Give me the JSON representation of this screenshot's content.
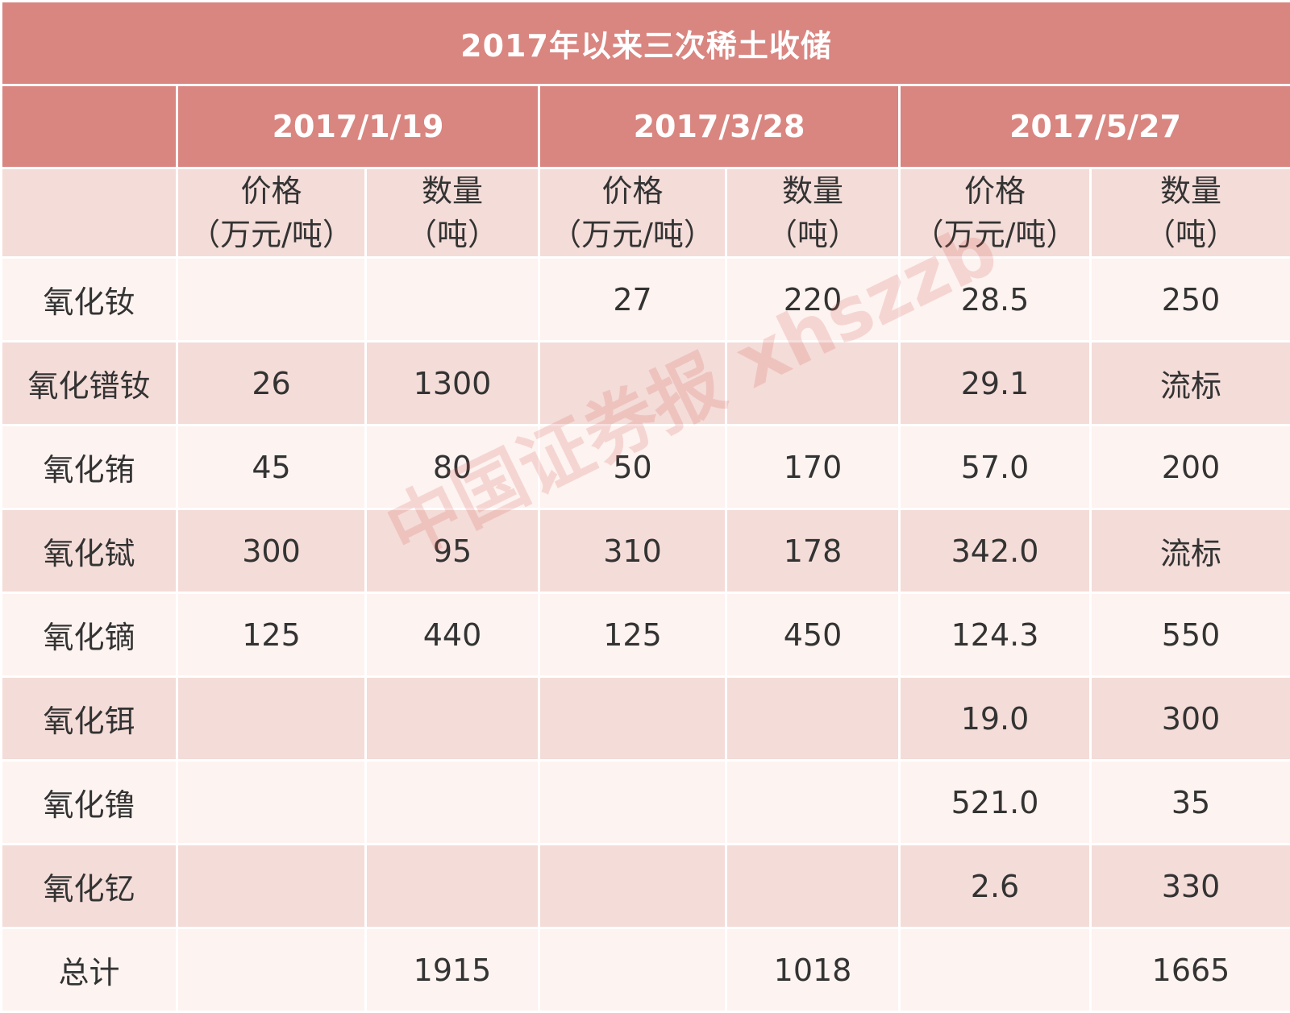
{
  "title": "2017年以来三次稀土收储",
  "dates": [
    "2017/1/19",
    "2017/3/28",
    "2017/5/27"
  ],
  "sub_headers": {
    "price_line1": "价格",
    "price_line2": "（万元/吨）",
    "qty_line1": "数量",
    "qty_line2": "（吨）"
  },
  "rows": [
    {
      "name": "氧化钕",
      "cells": [
        "",
        "",
        "27",
        "220",
        "28.5",
        "250"
      ]
    },
    {
      "name": "氧化镨钕",
      "cells": [
        "26",
        "1300",
        "",
        "",
        "29.1",
        "流标"
      ]
    },
    {
      "name": "氧化铕",
      "cells": [
        "45",
        "80",
        "50",
        "170",
        "57.0",
        "200"
      ]
    },
    {
      "name": "氧化铽",
      "cells": [
        "300",
        "95",
        "310",
        "178",
        "342.0",
        "流标"
      ]
    },
    {
      "name": "氧化镝",
      "cells": [
        "125",
        "440",
        "125",
        "450",
        "124.3",
        "550"
      ]
    },
    {
      "name": "氧化铒",
      "cells": [
        "",
        "",
        "",
        "",
        "19.0",
        "300"
      ]
    },
    {
      "name": "氧化镥",
      "cells": [
        "",
        "",
        "",
        "",
        "521.0",
        "35"
      ]
    },
    {
      "name": "氧化钇",
      "cells": [
        "",
        "",
        "",
        "",
        "2.6",
        "330"
      ]
    },
    {
      "name": "总计",
      "cells": [
        "",
        "1915",
        "",
        "1018",
        "",
        "1665"
      ]
    }
  ],
  "watermark": "中国证券报 xhszzb",
  "colors": {
    "header": "#d98580",
    "band_light": "#fdf3f0",
    "band_dark": "#f4dcd8"
  }
}
